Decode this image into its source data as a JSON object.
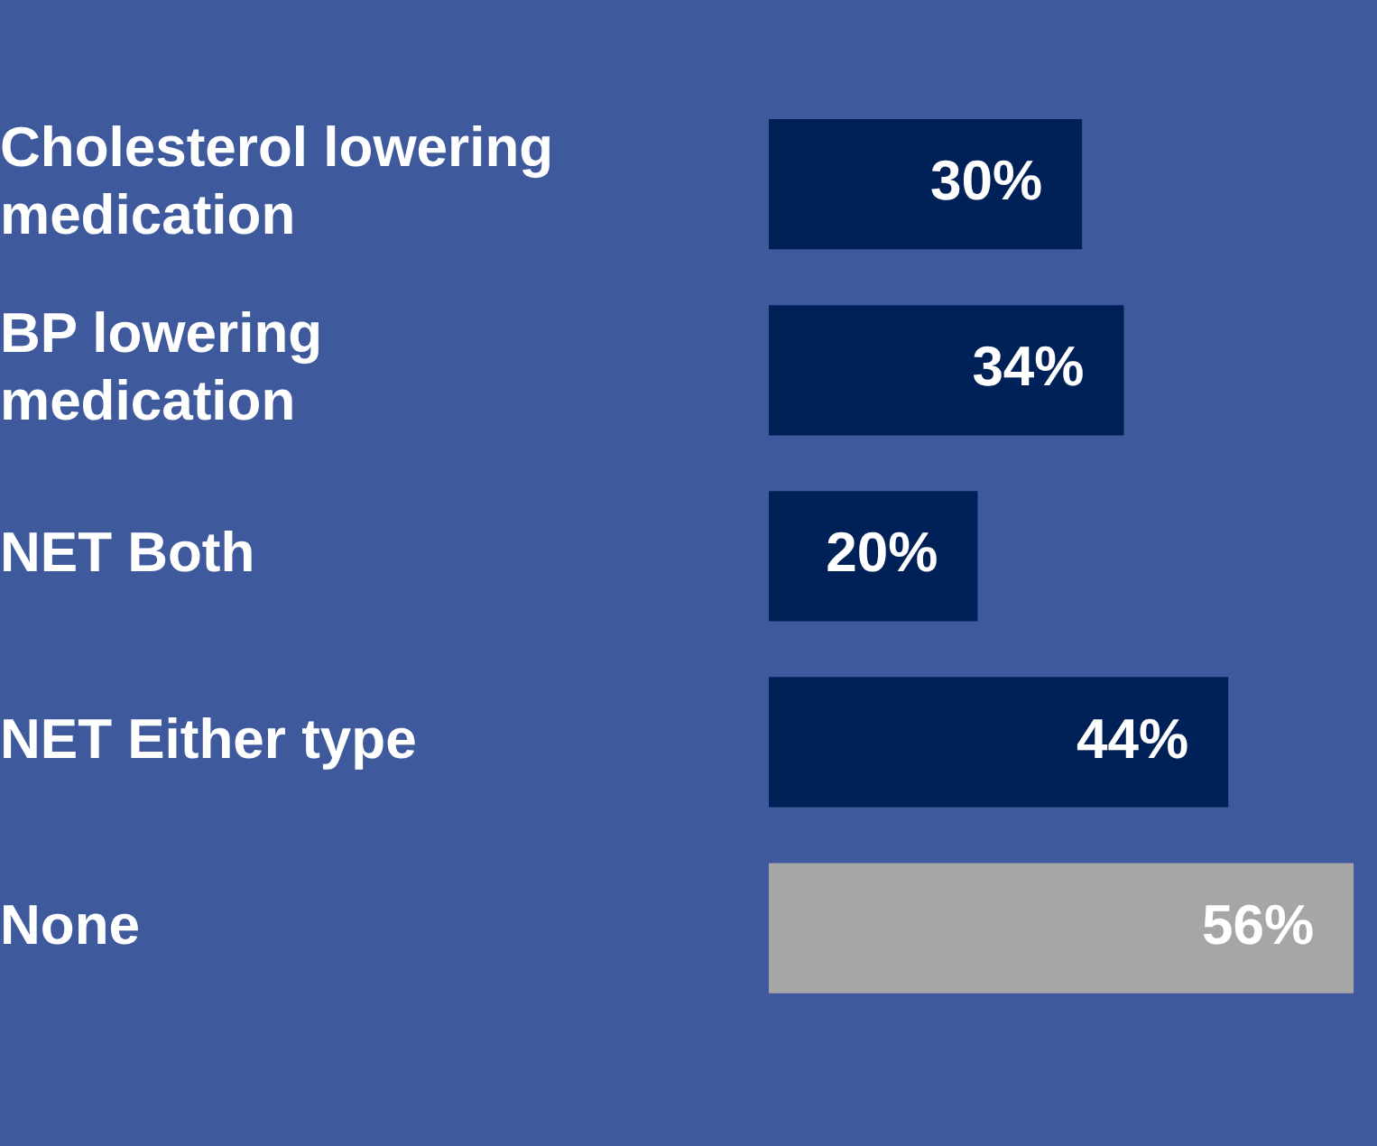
{
  "chart_data": {
    "type": "bar",
    "orientation": "horizontal",
    "categories": [
      "Cholesterol lowering\nmedication",
      "BP lowering\nmedication",
      "NET Both",
      "NET Either type",
      "None"
    ],
    "values": [
      30,
      34,
      20,
      44,
      56
    ],
    "colors": [
      "#002157",
      "#002157",
      "#002157",
      "#002157",
      "#a6a6a6"
    ],
    "value_labels": [
      "30%",
      "34%",
      "20%",
      "44%",
      "56%"
    ],
    "grid": false,
    "legend": false
  }
}
